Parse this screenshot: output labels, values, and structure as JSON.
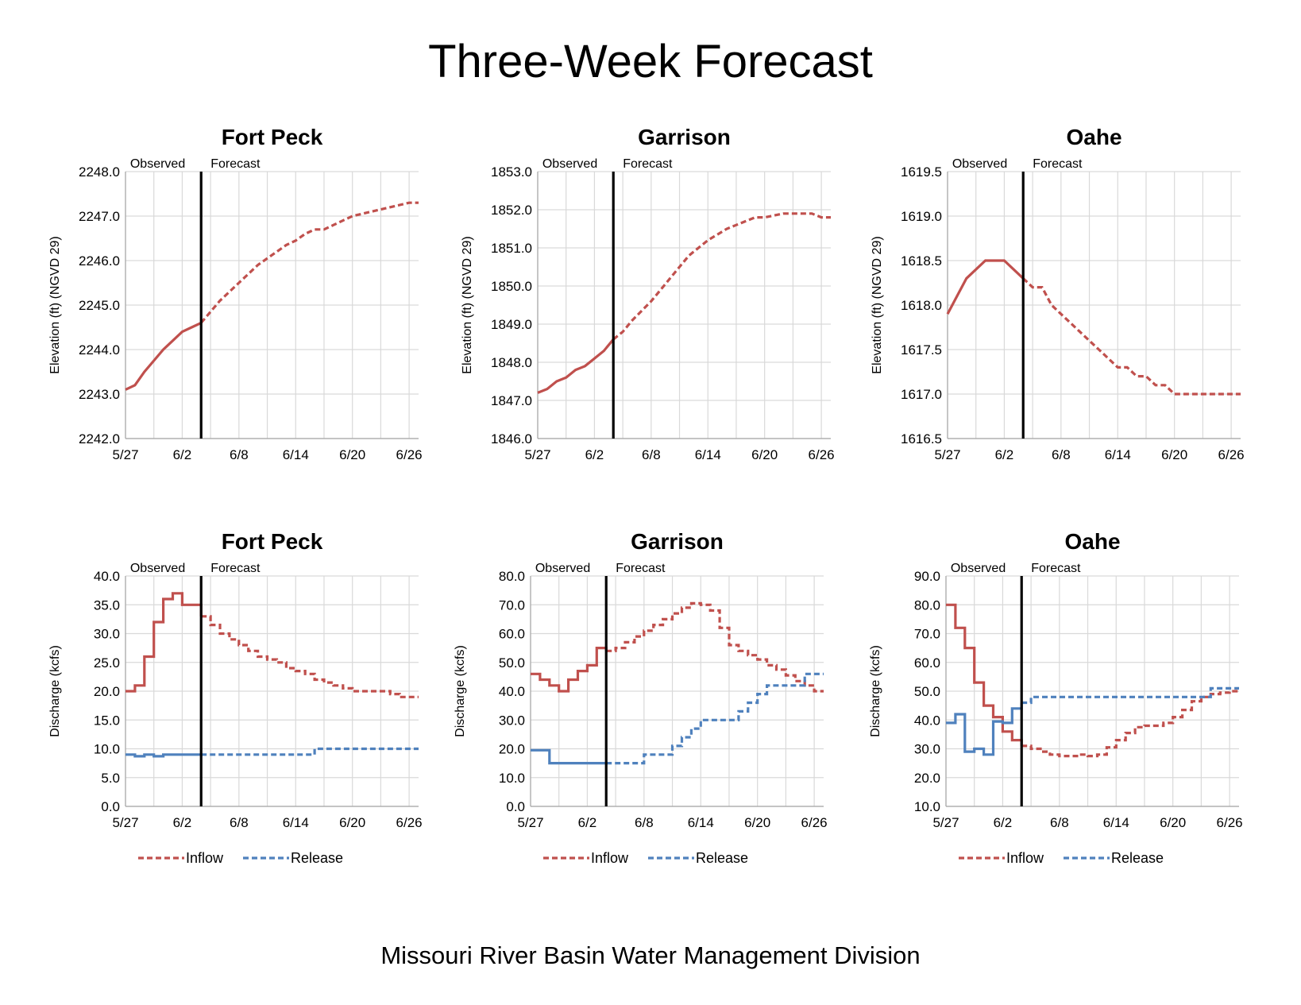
{
  "title": "Three-Week Forecast",
  "footer": "Missouri River Basin Water Management Division",
  "colors": {
    "inflow": "#c0504d",
    "release": "#4f81bd",
    "grid": "#d9d9d9",
    "divider": "#000000"
  },
  "chart_data": [
    {
      "type": "line",
      "title": "Fort Peck",
      "ylabel": "Elevation (ft) (NGVD 29)",
      "ylim": [
        2242.0,
        2248.0
      ],
      "yticks": [
        "2242.0",
        "2243.0",
        "2244.0",
        "2245.0",
        "2246.0",
        "2247.0",
        "2248.0"
      ],
      "xlim": [
        0,
        31
      ],
      "xticks": [
        0,
        6,
        12,
        18,
        24,
        30
      ],
      "xtick_labels": [
        "5/27",
        "6/2",
        "6/8",
        "6/14",
        "6/20",
        "6/26"
      ],
      "divider": 8,
      "observed_label": "Observed",
      "forecast_label": "Forecast",
      "series": [
        {
          "color": "inflow",
          "step": false,
          "x": [
            0,
            1,
            2,
            3,
            4,
            5,
            6,
            7,
            8,
            9,
            10,
            11,
            12,
            13,
            14,
            15,
            16,
            17,
            18,
            19,
            20,
            21,
            22,
            23,
            24,
            25,
            26,
            27,
            28,
            29,
            30,
            31
          ],
          "values": [
            2243.1,
            2243.2,
            2243.5,
            2243.75,
            2244.0,
            2244.2,
            2244.4,
            2244.5,
            2244.6,
            2244.85,
            2245.1,
            2245.3,
            2245.5,
            2245.7,
            2245.9,
            2246.05,
            2246.2,
            2246.35,
            2246.45,
            2246.6,
            2246.7,
            2246.7,
            2246.8,
            2246.9,
            2247.0,
            2247.05,
            2247.1,
            2247.15,
            2247.2,
            2247.25,
            2247.3,
            2247.3
          ]
        }
      ]
    },
    {
      "type": "line",
      "title": "Garrison",
      "ylabel": "Elevation (ft) (NGVD 29)",
      "ylim": [
        1846.0,
        1853.0
      ],
      "yticks": [
        "1846.0",
        "1847.0",
        "1848.0",
        "1849.0",
        "1850.0",
        "1851.0",
        "1852.0",
        "1853.0"
      ],
      "xlim": [
        0,
        31
      ],
      "xticks": [
        0,
        6,
        12,
        18,
        24,
        30
      ],
      "xtick_labels": [
        "5/27",
        "6/2",
        "6/8",
        "6/14",
        "6/20",
        "6/26"
      ],
      "divider": 8,
      "observed_label": "Observed",
      "forecast_label": "Forecast",
      "series": [
        {
          "color": "inflow",
          "step": false,
          "x": [
            0,
            1,
            2,
            3,
            4,
            5,
            6,
            7,
            8,
            9,
            10,
            11,
            12,
            13,
            14,
            15,
            16,
            17,
            18,
            19,
            20,
            21,
            22,
            23,
            24,
            25,
            26,
            27,
            28,
            29,
            30,
            31
          ],
          "values": [
            1847.2,
            1847.3,
            1847.5,
            1847.6,
            1847.8,
            1847.9,
            1848.1,
            1848.3,
            1848.6,
            1848.8,
            1849.1,
            1849.35,
            1849.6,
            1849.9,
            1850.2,
            1850.5,
            1850.8,
            1851.0,
            1851.2,
            1851.35,
            1851.5,
            1851.6,
            1851.7,
            1851.8,
            1851.8,
            1851.85,
            1851.9,
            1851.9,
            1851.9,
            1851.9,
            1851.8,
            1851.8
          ]
        }
      ]
    },
    {
      "type": "line",
      "title": "Oahe",
      "ylabel": "Elevation (ft) (NGVD 29)",
      "ylim": [
        1616.5,
        1619.5
      ],
      "yticks": [
        "1616.5",
        "1617.0",
        "1617.5",
        "1618.0",
        "1618.5",
        "1619.0",
        "1619.5"
      ],
      "xlim": [
        0,
        31
      ],
      "xticks": [
        0,
        6,
        12,
        18,
        24,
        30
      ],
      "xtick_labels": [
        "5/27",
        "6/2",
        "6/8",
        "6/14",
        "6/20",
        "6/26"
      ],
      "divider": 8,
      "observed_label": "Observed",
      "forecast_label": "Forecast",
      "series": [
        {
          "color": "inflow",
          "step": false,
          "x": [
            0,
            1,
            2,
            3,
            4,
            5,
            6,
            7,
            8,
            9,
            10,
            11,
            12,
            13,
            14,
            15,
            16,
            17,
            18,
            19,
            20,
            21,
            22,
            23,
            24,
            25,
            26,
            27,
            28,
            29,
            30,
            31
          ],
          "values": [
            1617.9,
            1618.1,
            1618.3,
            1618.4,
            1618.5,
            1618.5,
            1618.5,
            1618.4,
            1618.3,
            1618.2,
            1618.2,
            1618.0,
            1617.9,
            1617.8,
            1617.7,
            1617.6,
            1617.5,
            1617.4,
            1617.3,
            1617.3,
            1617.2,
            1617.2,
            1617.1,
            1617.1,
            1617.0,
            1617.0,
            1617.0,
            1617.0,
            1617.0,
            1617.0,
            1617.0,
            1617.0
          ]
        }
      ]
    },
    {
      "type": "line",
      "title": "Fort Peck",
      "ylabel": "Discharge (kcfs)",
      "ylim": [
        0,
        40
      ],
      "yticks": [
        "0.0",
        "5.0",
        "10.0",
        "15.0",
        "20.0",
        "25.0",
        "30.0",
        "35.0",
        "40.0"
      ],
      "xlim": [
        0,
        31
      ],
      "xticks": [
        0,
        6,
        12,
        18,
        24,
        30
      ],
      "xtick_labels": [
        "5/27",
        "6/2",
        "6/8",
        "6/14",
        "6/20",
        "6/26"
      ],
      "divider": 8,
      "observed_label": "Observed",
      "forecast_label": "Forecast",
      "legend": [
        "Inflow",
        "Release"
      ],
      "series": [
        {
          "name": "Inflow",
          "color": "inflow",
          "step": true,
          "x": [
            0,
            1,
            2,
            3,
            4,
            5,
            6,
            7,
            8,
            9,
            10,
            11,
            12,
            13,
            14,
            15,
            16,
            17,
            18,
            19,
            20,
            21,
            22,
            23,
            24,
            25,
            26,
            27,
            28,
            29,
            30
          ],
          "values": [
            20,
            21,
            26,
            32,
            36,
            37,
            35,
            35,
            33,
            31.5,
            30,
            29,
            28,
            27,
            26,
            25.5,
            25,
            24,
            23.5,
            23,
            22,
            21.5,
            21,
            20.5,
            20,
            20,
            20,
            20,
            19.5,
            19,
            19
          ]
        },
        {
          "name": "Release",
          "color": "release",
          "step": true,
          "x": [
            0,
            1,
            2,
            3,
            4,
            5,
            6,
            7,
            8,
            9,
            10,
            11,
            12,
            13,
            14,
            15,
            16,
            17,
            18,
            19,
            20,
            21,
            22,
            23,
            24,
            25,
            26,
            27,
            28,
            29,
            30
          ],
          "values": [
            9,
            8.7,
            9,
            8.7,
            9,
            9,
            9,
            9,
            9,
            9,
            9,
            9,
            9,
            9,
            9,
            9,
            9,
            9,
            9,
            9,
            10,
            10,
            10,
            10,
            10,
            10,
            10,
            10,
            10,
            10,
            10
          ]
        }
      ]
    },
    {
      "type": "line",
      "title": "Garrison",
      "ylabel": "Discharge (kcfs)",
      "ylim": [
        0,
        80
      ],
      "yticks": [
        "0.0",
        "10.0",
        "20.0",
        "30.0",
        "40.0",
        "50.0",
        "60.0",
        "70.0",
        "80.0"
      ],
      "xlim": [
        0,
        31
      ],
      "xticks": [
        0,
        6,
        12,
        18,
        24,
        30
      ],
      "xtick_labels": [
        "5/27",
        "6/2",
        "6/8",
        "6/14",
        "6/20",
        "6/26"
      ],
      "divider": 8,
      "observed_label": "Observed",
      "forecast_label": "Forecast",
      "legend": [
        "Inflow",
        "Release"
      ],
      "series": [
        {
          "name": "Inflow",
          "color": "inflow",
          "step": true,
          "x": [
            0,
            1,
            2,
            3,
            4,
            5,
            6,
            7,
            8,
            9,
            10,
            11,
            12,
            13,
            14,
            15,
            16,
            17,
            18,
            19,
            20,
            21,
            22,
            23,
            24,
            25,
            26,
            27,
            28,
            29,
            30
          ],
          "values": [
            46,
            44,
            42,
            40,
            44,
            47,
            49,
            55,
            54,
            55,
            57,
            59,
            61,
            63,
            65,
            67,
            69,
            70.5,
            70,
            68,
            62,
            56,
            54,
            52.5,
            51,
            49,
            47.5,
            45.5,
            43.5,
            42,
            40
          ]
        },
        {
          "name": "Release",
          "color": "release",
          "step": true,
          "x": [
            0,
            1,
            2,
            3,
            4,
            5,
            6,
            7,
            8,
            9,
            10,
            11,
            12,
            13,
            14,
            15,
            16,
            17,
            18,
            19,
            20,
            21,
            22,
            23,
            24,
            25,
            26,
            27,
            28,
            29,
            30
          ],
          "values": [
            19.5,
            19.5,
            15,
            15,
            15,
            15,
            15,
            15,
            15,
            15,
            15,
            15,
            18,
            18,
            18,
            21,
            24,
            27,
            30,
            30,
            30,
            30,
            33,
            36,
            39,
            42,
            42,
            42,
            42,
            46,
            46
          ]
        }
      ]
    },
    {
      "type": "line",
      "title": "Oahe",
      "ylabel": "Discharge (kcfs)",
      "ylim": [
        10,
        90
      ],
      "yticks": [
        "10.0",
        "20.0",
        "30.0",
        "40.0",
        "50.0",
        "60.0",
        "70.0",
        "80.0",
        "90.0"
      ],
      "xlim": [
        0,
        31
      ],
      "xticks": [
        0,
        6,
        12,
        18,
        24,
        30
      ],
      "xtick_labels": [
        "5/27",
        "6/2",
        "6/8",
        "6/14",
        "6/20",
        "6/26"
      ],
      "divider": 8,
      "observed_label": "Observed",
      "forecast_label": "Forecast",
      "legend": [
        "Inflow",
        "Release"
      ],
      "series": [
        {
          "name": "Inflow",
          "color": "inflow",
          "step": true,
          "x": [
            0,
            1,
            2,
            3,
            4,
            5,
            6,
            7,
            8,
            9,
            10,
            11,
            12,
            13,
            14,
            15,
            16,
            17,
            18,
            19,
            20,
            21,
            22,
            23,
            24,
            25,
            26,
            27,
            28,
            29,
            30
          ],
          "values": [
            80,
            72,
            65,
            53,
            45,
            41,
            36,
            33,
            31,
            30,
            29,
            28,
            27.5,
            27.5,
            28,
            27.5,
            28,
            30.5,
            33,
            35.5,
            37.5,
            38,
            38,
            39,
            41,
            43.5,
            46.5,
            48,
            49,
            49.5,
            50
          ]
        },
        {
          "name": "Release",
          "color": "release",
          "step": true,
          "x": [
            0,
            1,
            2,
            3,
            4,
            5,
            6,
            7,
            8,
            9,
            10,
            11,
            12,
            13,
            14,
            15,
            16,
            17,
            18,
            19,
            20,
            21,
            22,
            23,
            24,
            25,
            26,
            27,
            28,
            29,
            30
          ],
          "values": [
            39,
            42,
            29,
            30,
            28,
            39.5,
            39,
            44,
            46,
            48,
            48,
            48,
            48,
            48,
            48,
            48,
            48,
            48,
            48,
            48,
            48,
            48,
            48,
            48,
            48,
            48,
            48,
            48,
            51,
            51,
            51
          ]
        }
      ]
    }
  ]
}
